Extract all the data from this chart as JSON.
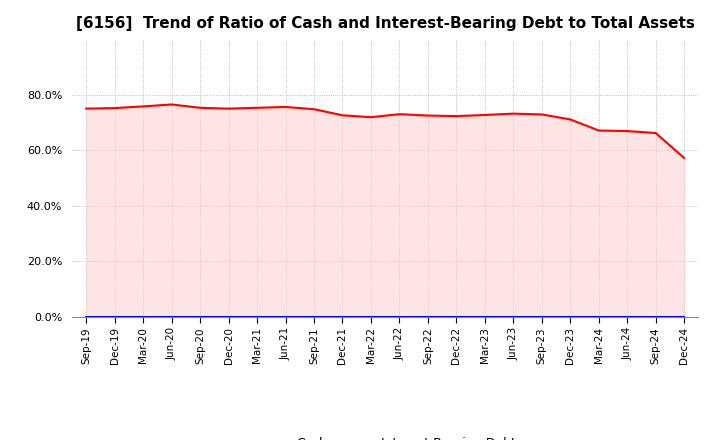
{
  "title": "[6156]  Trend of Ratio of Cash and Interest-Bearing Debt to Total Assets",
  "x_labels": [
    "Sep-19",
    "Dec-19",
    "Mar-20",
    "Jun-20",
    "Sep-20",
    "Dec-20",
    "Mar-21",
    "Jun-21",
    "Sep-21",
    "Dec-21",
    "Mar-22",
    "Jun-22",
    "Sep-22",
    "Dec-22",
    "Mar-23",
    "Jun-23",
    "Sep-23",
    "Dec-23",
    "Mar-24",
    "Jun-24",
    "Sep-24",
    "Dec-24"
  ],
  "cash": [
    0.751,
    0.753,
    0.759,
    0.766,
    0.754,
    0.751,
    0.754,
    0.757,
    0.749,
    0.727,
    0.72,
    0.731,
    0.726,
    0.724,
    0.728,
    0.733,
    0.73,
    0.712,
    0.672,
    0.67,
    0.663,
    0.573
  ],
  "interest_bearing_debt": [
    0.0,
    0.0,
    0.0,
    0.0,
    0.0,
    0.0,
    0.0,
    0.0,
    0.0,
    0.0,
    0.0,
    0.0,
    0.0,
    0.0,
    0.0,
    0.0,
    0.0,
    0.0,
    0.0,
    0.0,
    0.0,
    0.0
  ],
  "cash_color": "#ff0000",
  "ibd_color": "#0000ff",
  "fill_color": "#ffcccc",
  "fill_alpha": 0.5,
  "ylim": [
    0.0,
    1.0
  ],
  "yticks": [
    0.0,
    0.2,
    0.4,
    0.6,
    0.8
  ],
  "grid_color": "#aaaaaa",
  "background_color": "#ffffff",
  "plot_bg_color": "#ffffff",
  "legend_cash": "Cash",
  "legend_ibd": "Interest-Bearing Debt",
  "title_fontsize": 11,
  "line_width": 1.5
}
